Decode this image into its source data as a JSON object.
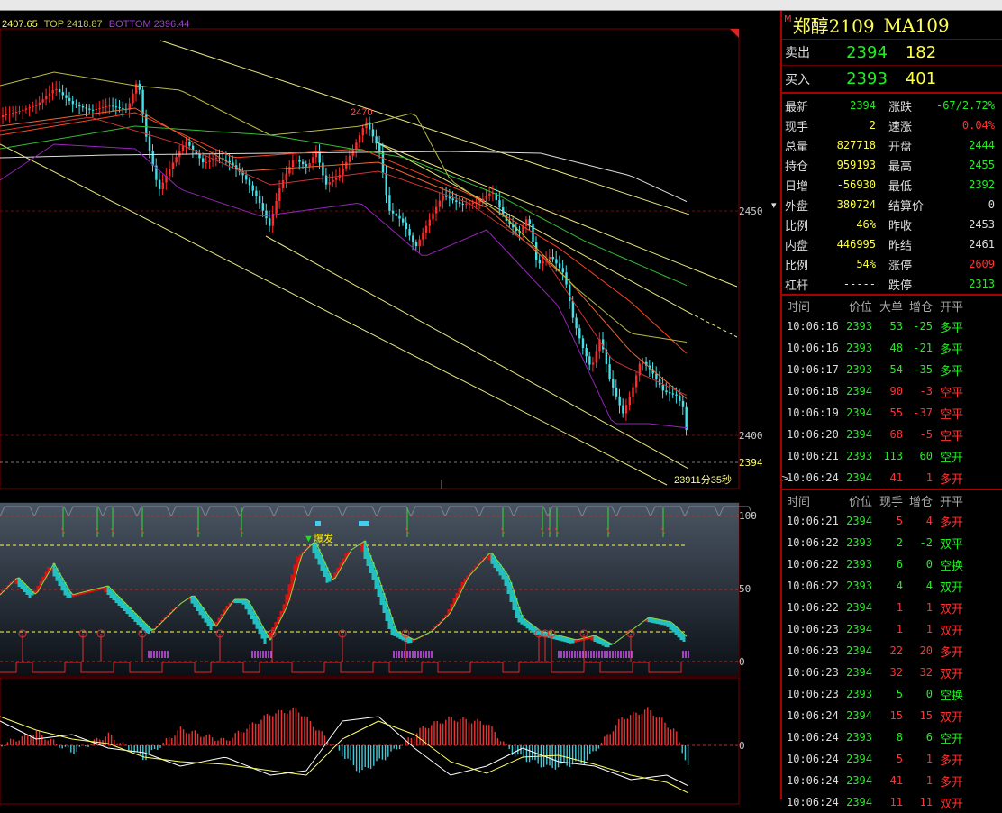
{
  "chart": {
    "legend": {
      "price": "2407.65",
      "top": "TOP 2418.87",
      "bottom": "BOTTOM 2396.44"
    },
    "colors": {
      "up": "#ff2a2a",
      "down": "#44e0e8",
      "legend_price": "#ffff66",
      "legend_top": "#c8c850",
      "legend_bottom": "#a040d0"
    },
    "price_axis": [
      "2450",
      "2400"
    ],
    "current_price": "2394",
    "countdown_price": "2391",
    "countdown_text": "1分35秒",
    "peak_label": "2470",
    "osc_axis": [
      "100",
      "50",
      "0"
    ],
    "burst_label": "爆发",
    "macd_axis": [
      "0"
    ]
  },
  "panel": {
    "title_mark": "M",
    "name": "郑醇2109",
    "code": "MA109",
    "sell": {
      "label": "卖出",
      "price": "2394",
      "volume": "182"
    },
    "buy": {
      "label": "买入",
      "price": "2393",
      "volume": "401"
    },
    "stats": [
      {
        "l": "最新",
        "v": "2394",
        "vc": "g",
        "l2": "涨跌",
        "v2": "-67/2.72%",
        "v2c": "g"
      },
      {
        "l": "现手",
        "v": "2",
        "vc": "y",
        "l2": "速涨",
        "v2": "0.04%",
        "v2c": "r"
      },
      {
        "l": "总量",
        "v": "827718",
        "vc": "y",
        "l2": "开盘",
        "v2": "2444",
        "v2c": "g"
      },
      {
        "l": "持仓",
        "v": "959193",
        "vc": "y",
        "l2": "最高",
        "v2": "2455",
        "v2c": "g"
      },
      {
        "l": "日增",
        "v": "-56930",
        "vc": "y",
        "l2": "最低",
        "v2": "2392",
        "v2c": "g"
      },
      {
        "l": "外盘",
        "v": "380724",
        "vc": "y",
        "l2": "结算价",
        "v2": "0",
        "v2c": "w",
        "dropdown": true
      },
      {
        "l": "比例",
        "v": "46%",
        "vc": "y",
        "l2": "昨收",
        "v2": "2453",
        "v2c": "w"
      },
      {
        "l": "内盘",
        "v": "446995",
        "vc": "y",
        "l2": "昨结",
        "v2": "2461",
        "v2c": "w"
      },
      {
        "l": "比例",
        "v": "54%",
        "vc": "y",
        "l2": "涨停",
        "v2": "2609",
        "v2c": "r"
      },
      {
        "l": "杠杆",
        "v": "-----",
        "vc": "y",
        "l2": "跌停",
        "v2": "2313",
        "v2c": "g"
      }
    ],
    "tick1_headers": [
      "时间",
      "价位",
      "大单",
      "增仓",
      "开平"
    ],
    "tick1": [
      {
        "t": "10:06:16",
        "p": "2393",
        "pc": "g",
        "v": "53",
        "vc": "g",
        "o": "-25",
        "type": "多平"
      },
      {
        "t": "10:06:16",
        "p": "2393",
        "pc": "g",
        "v": "48",
        "vc": "g",
        "o": "-21",
        "type": "多平"
      },
      {
        "t": "10:06:17",
        "p": "2393",
        "pc": "g",
        "v": "54",
        "vc": "g",
        "o": "-35",
        "type": "多平"
      },
      {
        "t": "10:06:18",
        "p": "2394",
        "pc": "g",
        "v": "90",
        "vc": "r",
        "o": "-3",
        "type": "空平"
      },
      {
        "t": "10:06:19",
        "p": "2394",
        "pc": "g",
        "v": "55",
        "vc": "r",
        "o": "-37",
        "type": "空平"
      },
      {
        "t": "10:06:20",
        "p": "2394",
        "pc": "g",
        "v": "68",
        "vc": "r",
        "o": "-5",
        "type": "空平"
      },
      {
        "t": "10:06:21",
        "p": "2393",
        "pc": "g",
        "v": "113",
        "vc": "g",
        "o": "60",
        "type": "空开"
      },
      {
        "t": "10:06:24",
        "p": "2394",
        "pc": "g",
        "v": "41",
        "vc": "r",
        "o": "1",
        "type": "多开",
        "mark": ">"
      }
    ],
    "tick2_headers": [
      "时间",
      "价位",
      "现手",
      "增仓",
      "开平"
    ],
    "tick2": [
      {
        "t": "10:06:21",
        "p": "2394",
        "pc": "g",
        "v": "5",
        "vc": "r",
        "o": "4",
        "type": "多开"
      },
      {
        "t": "10:06:22",
        "p": "2393",
        "pc": "g",
        "v": "2",
        "vc": "g",
        "o": "-2",
        "type": "双平"
      },
      {
        "t": "10:06:22",
        "p": "2393",
        "pc": "g",
        "v": "6",
        "vc": "g",
        "o": "0",
        "type": "空换"
      },
      {
        "t": "10:06:22",
        "p": "2393",
        "pc": "g",
        "v": "4",
        "vc": "g",
        "o": "4",
        "type": "双开"
      },
      {
        "t": "10:06:22",
        "p": "2394",
        "pc": "g",
        "v": "1",
        "vc": "r",
        "o": "1",
        "type": "双开"
      },
      {
        "t": "10:06:23",
        "p": "2394",
        "pc": "g",
        "v": "1",
        "vc": "r",
        "o": "1",
        "type": "双开"
      },
      {
        "t": "10:06:23",
        "p": "2394",
        "pc": "g",
        "v": "22",
        "vc": "r",
        "o": "20",
        "type": "多开"
      },
      {
        "t": "10:06:23",
        "p": "2394",
        "pc": "g",
        "v": "32",
        "vc": "r",
        "o": "32",
        "type": "双开"
      },
      {
        "t": "10:06:23",
        "p": "2393",
        "pc": "g",
        "v": "5",
        "vc": "g",
        "o": "0",
        "type": "空换"
      },
      {
        "t": "10:06:24",
        "p": "2394",
        "pc": "g",
        "v": "15",
        "vc": "r",
        "o": "15",
        "type": "双开"
      },
      {
        "t": "10:06:24",
        "p": "2393",
        "pc": "g",
        "v": "8",
        "vc": "g",
        "o": "6",
        "type": "空开"
      },
      {
        "t": "10:06:24",
        "p": "2394",
        "pc": "g",
        "v": "5",
        "vc": "r",
        "o": "1",
        "type": "多开"
      },
      {
        "t": "10:06:24",
        "p": "2394",
        "pc": "g",
        "v": "41",
        "vc": "r",
        "o": "1",
        "type": "多开"
      },
      {
        "t": "10:06:24",
        "p": "2394",
        "pc": "g",
        "v": "11",
        "vc": "r",
        "o": "11",
        "type": "双开"
      }
    ]
  }
}
